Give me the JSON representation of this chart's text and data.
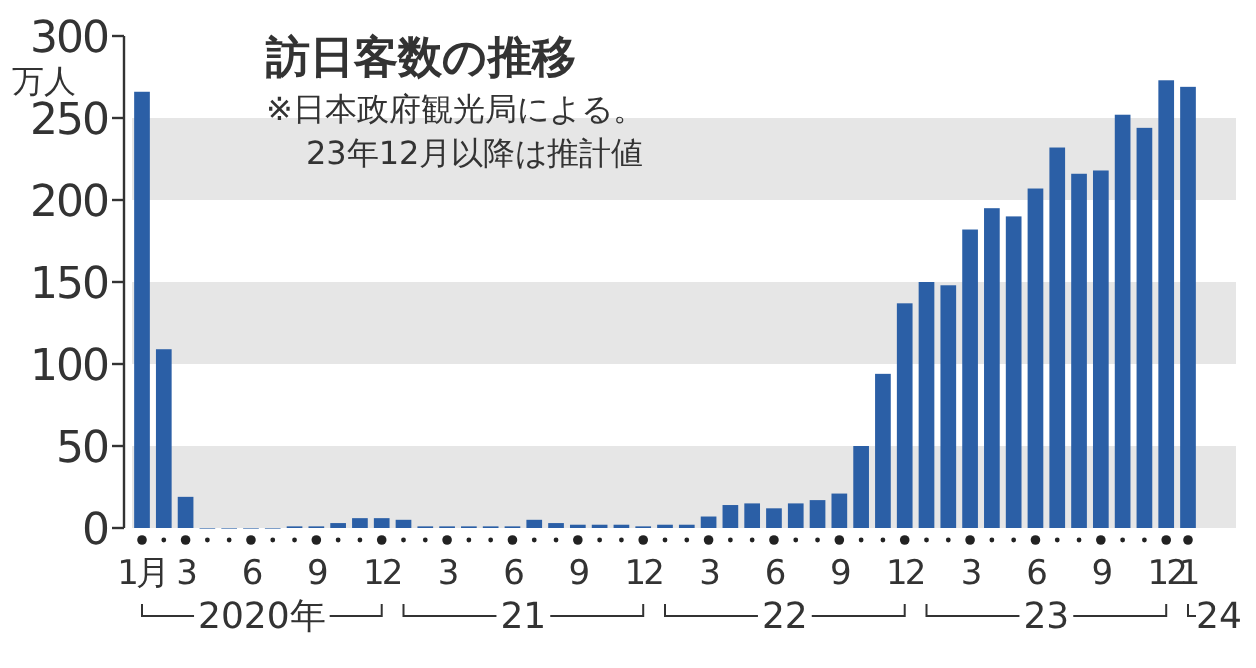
{
  "chart_data": {
    "type": "bar",
    "title": "訪日客数の推移",
    "subtitle": "※日本政府観光局による。\n23年12月以降は推計値",
    "ylabel": "万人",
    "categories": [
      "1月",
      null,
      "3",
      null,
      null,
      "6",
      null,
      null,
      "9",
      null,
      null,
      "12",
      null,
      null,
      "3",
      null,
      null,
      "6",
      null,
      null,
      "9",
      null,
      null,
      "12",
      null,
      null,
      "3",
      null,
      null,
      "6",
      null,
      null,
      "9",
      null,
      null,
      "12",
      null,
      null,
      "3",
      null,
      null,
      "6",
      null,
      null,
      "9",
      null,
      null,
      "12",
      "1"
    ],
    "values": [
      266,
      109,
      19,
      0,
      0,
      0,
      0,
      1,
      1,
      3,
      6,
      6,
      5,
      1,
      1,
      1,
      1,
      1,
      5,
      3,
      2,
      2,
      2,
      1,
      2,
      2,
      7,
      14,
      15,
      12,
      15,
      17,
      21,
      50,
      94,
      137,
      150,
      148,
      182,
      195,
      190,
      207,
      232,
      216,
      218,
      252,
      244,
      273,
      269
    ],
    "color": "#2b5fa6",
    "ylim": [
      0,
      300
    ],
    "yticks": [
      0,
      50,
      100,
      150,
      200,
      250,
      300
    ],
    "grid": false,
    "bands": [
      {
        "axis": "y",
        "from": 0,
        "to": 50,
        "color": "#e6e6e6"
      },
      {
        "axis": "y",
        "from": 100,
        "to": 150,
        "color": "#e6e6e6"
      },
      {
        "axis": "y",
        "from": 200,
        "to": 250,
        "color": "#e6e6e6"
      }
    ],
    "annotations": [
      "2020年",
      "21",
      "22",
      "23",
      "24"
    ]
  }
}
